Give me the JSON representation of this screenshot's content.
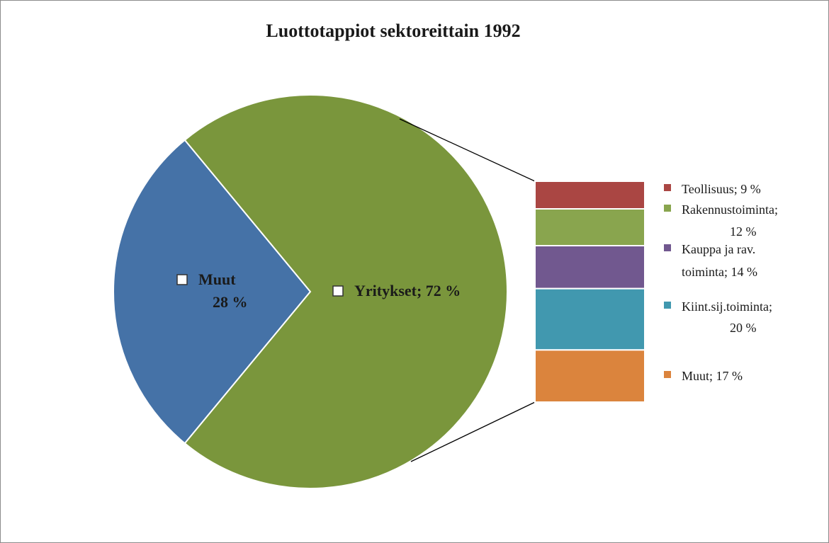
{
  "chart_data": {
    "type": "pie-of-bar",
    "title": "Luottotappiot sektoreittain 1992",
    "pie": {
      "values": [
        28,
        72
      ],
      "colors": [
        "#4572a7",
        "#7a963c"
      ],
      "value_labels": [
        [
          "Muut",
          "28 %"
        ],
        [
          "Yritykset; 72 %"
        ]
      ]
    },
    "bar": {
      "values": [
        9,
        12,
        14,
        20,
        17
      ],
      "colors": [
        "#aa4643",
        "#89a54e",
        "#71588f",
        "#4198af",
        "#db843d"
      ],
      "value_labels": [
        [
          "Teollisuus; 9 %"
        ],
        [
          "Rakennustoiminta;",
          "12 %"
        ],
        [
          "Kauppa ja rav.",
          "toiminta; 14 %"
        ],
        [
          "Kiint.sij.toiminta;",
          "20 %"
        ],
        [
          "Muut; 17 %"
        ]
      ]
    }
  }
}
